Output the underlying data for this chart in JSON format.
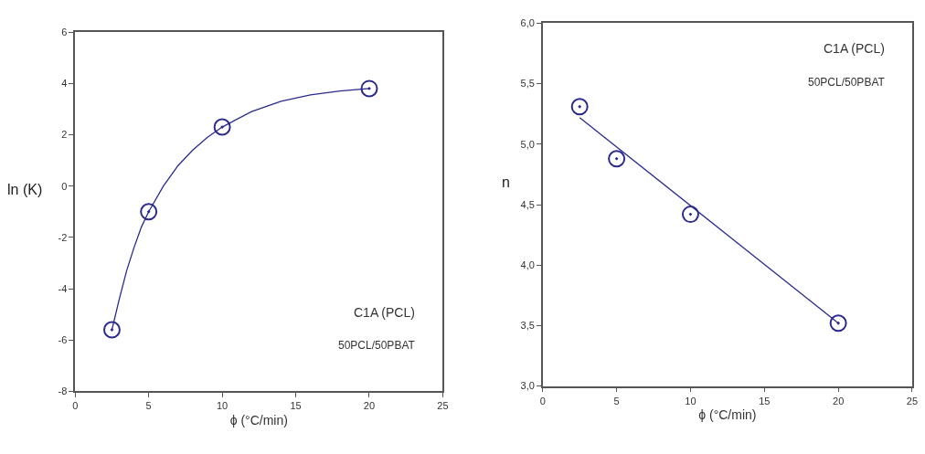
{
  "chart_data": [
    {
      "type": "scatter",
      "xlabel": "ϕ (°C/min)",
      "ylabel": "ln (K)",
      "xlim": [
        0,
        25
      ],
      "xticks": [
        0,
        5,
        10,
        15,
        20,
        25
      ],
      "ylim": [
        -8,
        6
      ],
      "yticks": [
        -8,
        -6,
        -4,
        -2,
        0,
        2,
        4,
        6
      ],
      "annotations": [
        "C1A (PCL)",
        "50PCL/50PBAT"
      ],
      "series": [
        {
          "marker": "circle",
          "color": "#2b2b8c",
          "x": [
            2.5,
            5,
            10,
            20
          ],
          "values": [
            -5.6,
            -1.0,
            2.3,
            3.8
          ]
        },
        {
          "type": "line",
          "marker": "none",
          "color": "#2b2b8c",
          "x": [
            2.5,
            3,
            3.5,
            4,
            4.5,
            5,
            6,
            7,
            8,
            9,
            10,
            12,
            14,
            16,
            18,
            20
          ],
          "values": [
            -5.6,
            -4.4,
            -3.3,
            -2.4,
            -1.6,
            -1.0,
            0.0,
            0.8,
            1.4,
            1.9,
            2.3,
            2.9,
            3.3,
            3.55,
            3.7,
            3.8
          ]
        }
      ]
    },
    {
      "type": "scatter",
      "xlabel": "ϕ (°C/min)",
      "ylabel": "n",
      "xlim": [
        0,
        25
      ],
      "xticks": [
        0,
        5,
        10,
        15,
        20,
        25
      ],
      "ylim": [
        3.0,
        6.0
      ],
      "yticks": [
        {
          "value": 3.0,
          "label": "3,0"
        },
        {
          "value": 3.5,
          "label": "3,5"
        },
        {
          "value": 4.0,
          "label": "4,0"
        },
        {
          "value": 4.5,
          "label": "4,5"
        },
        {
          "value": 5.0,
          "label": "5,0"
        },
        {
          "value": 5.5,
          "label": "5,5"
        },
        {
          "value": 6.0,
          "label": "6,0"
        }
      ],
      "annotations": [
        "C1A (PCL)",
        "50PCL/50PBAT"
      ],
      "series": [
        {
          "marker": "circle",
          "color": "#2b2b8c",
          "x": [
            2.5,
            5,
            10,
            20
          ],
          "values": [
            5.31,
            4.88,
            4.42,
            3.52
          ]
        },
        {
          "type": "line",
          "marker": "none",
          "color": "#2b2b8c",
          "x": [
            2.5,
            20
          ],
          "values": [
            5.22,
            3.52
          ]
        }
      ]
    }
  ]
}
